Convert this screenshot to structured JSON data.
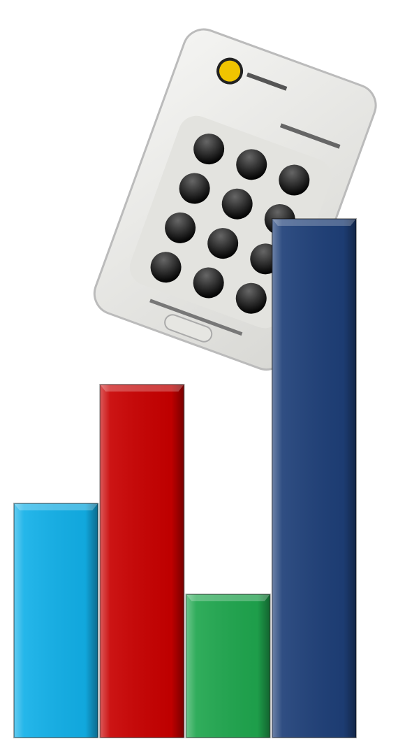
{
  "chart_data": {
    "type": "bar",
    "values": [
      335,
      505,
      205,
      742
    ],
    "colors": [
      "#12b0e8",
      "#c80000",
      "#1fa64e",
      "#1e3f78"
    ]
  }
}
